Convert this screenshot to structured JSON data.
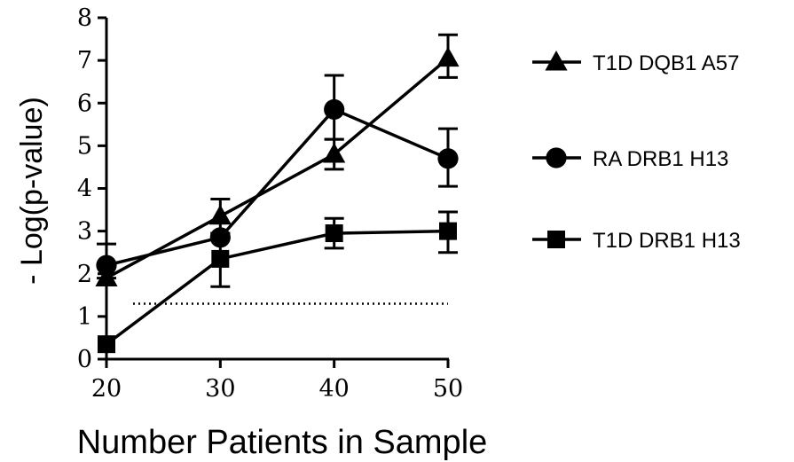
{
  "chart_data": {
    "type": "line",
    "title": "",
    "xlabel": "Number Patients in Sample",
    "ylabel": "- Log(p-value)",
    "x": [
      20,
      30,
      40,
      50
    ],
    "xlim": [
      20,
      50
    ],
    "ylim": [
      0,
      8
    ],
    "xticks": [
      "20",
      "30",
      "40",
      "50"
    ],
    "yticks": [
      "0",
      "1",
      "2",
      "3",
      "4",
      "5",
      "6",
      "7",
      "8"
    ],
    "grid": false,
    "legend_position": "right",
    "reference_line": {
      "y": 1.3,
      "style": "dotted"
    },
    "series": [
      {
        "name": "T1D DQB1 A57",
        "marker": "triangle",
        "values": [
          1.9,
          3.35,
          4.8,
          7.05
        ],
        "err_low": [
          1.9,
          2.95,
          4.45,
          6.6
        ],
        "err_high": [
          2.7,
          3.75,
          5.15,
          7.6
        ]
      },
      {
        "name": "RA DRB1 H13",
        "marker": "circle",
        "values": [
          2.2,
          2.85,
          5.85,
          4.7
        ],
        "err_low": [
          2.2,
          2.85,
          5.15,
          4.05
        ],
        "err_high": [
          2.2,
          2.85,
          6.65,
          5.4
        ]
      },
      {
        "name": "T1D DRB1 H13",
        "marker": "square",
        "values": [
          0.35,
          2.35,
          2.95,
          3.0
        ],
        "err_low": [
          0.35,
          1.7,
          2.6,
          2.5
        ],
        "err_high": [
          0.35,
          2.95,
          3.3,
          3.45
        ]
      }
    ],
    "colors": {
      "line": "#000000",
      "background": "#ffffff"
    }
  }
}
